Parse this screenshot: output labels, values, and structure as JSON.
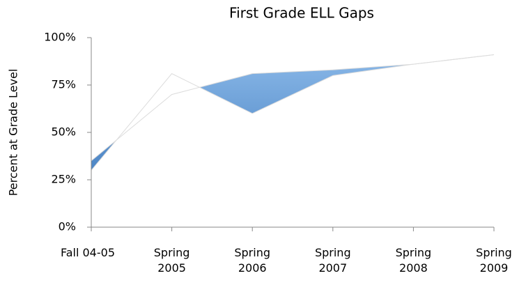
{
  "chart_data": {
    "type": "area-gap",
    "title": "First Grade ELL Gaps",
    "y_label": "Percent at Grade Level",
    "categories": [
      "Fall 04-05",
      "Spring 2005",
      "Spring 2006",
      "Spring 2007",
      "Spring 2008",
      "Spring 2009"
    ],
    "series": [
      {
        "color": "#4a86c8",
        "values": [
          35,
          70,
          81,
          83,
          86,
          91
        ]
      },
      {
        "color": "#ffffff",
        "values": [
          30,
          81,
          60,
          80,
          86,
          91
        ]
      }
    ],
    "ylim": [
      0,
      100
    ],
    "yticks": [
      {
        "value": 0,
        "label": "0%"
      },
      {
        "value": 25,
        "label": "25%"
      },
      {
        "value": 50,
        "label": "50%"
      },
      {
        "value": 75,
        "label": "75%"
      },
      {
        "value": 100,
        "label": "100%"
      }
    ]
  }
}
